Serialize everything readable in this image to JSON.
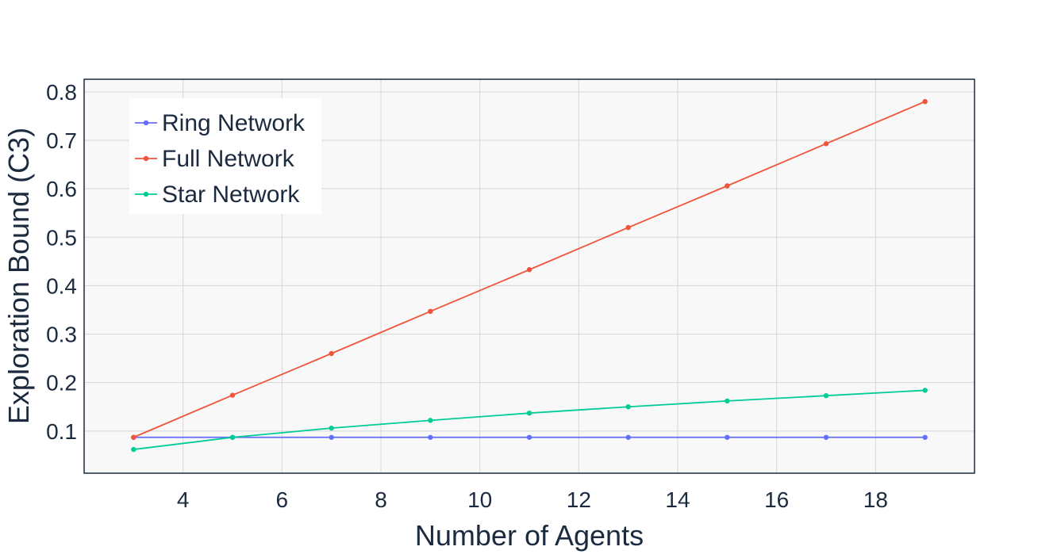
{
  "chart_data": {
    "type": "line",
    "title": "",
    "xlabel": "Number of Agents",
    "ylabel": "Exploration Bound (C3)",
    "xlim": [
      2,
      20
    ],
    "ylim": [
      0.013,
      0.826
    ],
    "xticks": [
      4,
      6,
      8,
      10,
      12,
      14,
      16,
      18
    ],
    "yticks": [
      0.1,
      0.2,
      0.3,
      0.4,
      0.5,
      0.6,
      0.7,
      0.8
    ],
    "ytick_labels": [
      "0.1",
      "0.2",
      "0.3",
      "0.4",
      "0.5",
      "0.6",
      "0.7",
      "0.8"
    ],
    "grid": true,
    "legend_position": "top-left",
    "x": [
      3,
      5,
      7,
      9,
      11,
      13,
      15,
      17,
      19
    ],
    "series": [
      {
        "name": "Ring Network",
        "color": "#636efa",
        "values": [
          0.087,
          0.087,
          0.087,
          0.087,
          0.087,
          0.087,
          0.087,
          0.087,
          0.087
        ]
      },
      {
        "name": "Full Network",
        "color": "#ef553b",
        "values": [
          0.087,
          0.174,
          0.26,
          0.347,
          0.433,
          0.52,
          0.606,
          0.693,
          0.78
        ]
      },
      {
        "name": "Star Network",
        "color": "#00cc96",
        "values": [
          0.062,
          0.087,
          0.106,
          0.122,
          0.137,
          0.15,
          0.162,
          0.173,
          0.184
        ]
      }
    ]
  }
}
